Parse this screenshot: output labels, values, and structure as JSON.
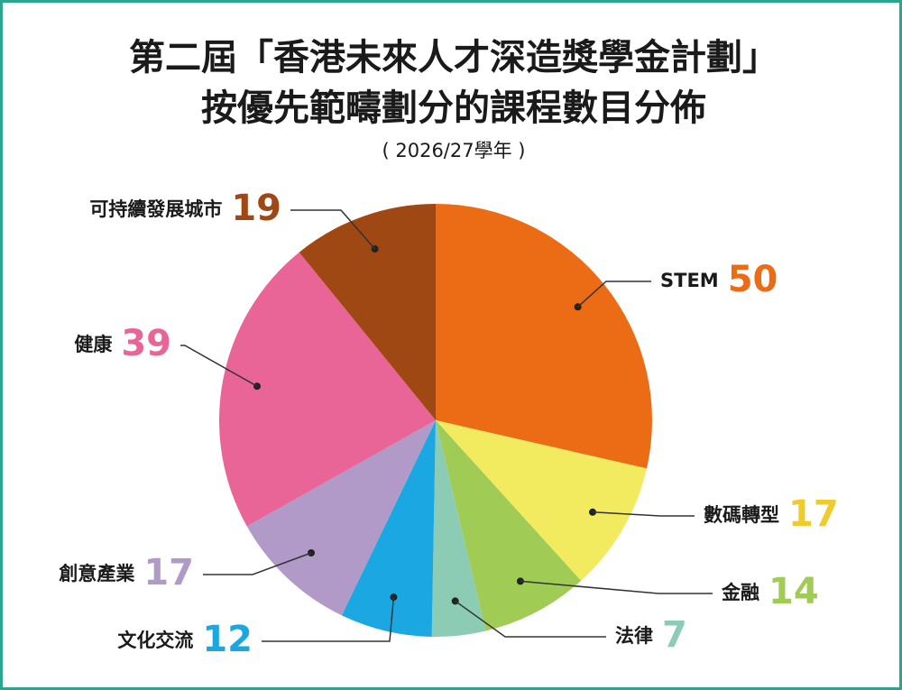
{
  "chart_data": {
    "type": "pie",
    "title_lines": [
      "第二屆「香港未來人才深造獎學金計劃」",
      "按優先範疇劃分的課程數目分佈"
    ],
    "subtitle": "( 2026/27學年 )",
    "slices": [
      {
        "label": "STEM",
        "value": 50,
        "color": "#ec6c16"
      },
      {
        "label": "數碼轉型",
        "value": 17,
        "color": "#f2eb5f"
      },
      {
        "label": "金融",
        "value": 14,
        "color": "#a0cc55"
      },
      {
        "label": "法律",
        "value": 7,
        "color": "#8ccbb4"
      },
      {
        "label": "文化交流",
        "value": 12,
        "color": "#1ba8e2"
      },
      {
        "label": "創意產業",
        "value": 17,
        "color": "#b199c8"
      },
      {
        "label": "健康",
        "value": 39,
        "color": "#e96597"
      },
      {
        "label": "可持續發展城市",
        "value": 19,
        "color": "#a04813"
      }
    ],
    "value_colors": [
      "#ec6c16",
      "#efcb2e",
      "#a0cc55",
      "#8ccbb4",
      "#1ba8e2",
      "#b199c8",
      "#e96597",
      "#a04813"
    ],
    "start": "12 o'clock",
    "direction": "clockwise"
  }
}
